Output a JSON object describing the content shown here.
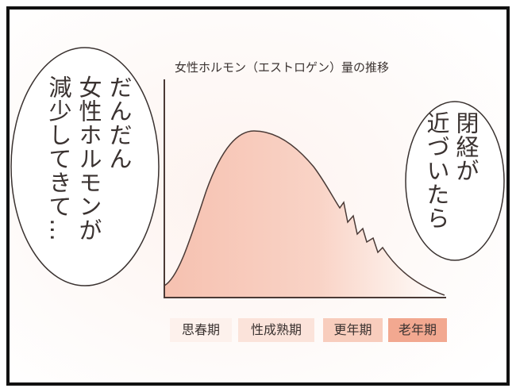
{
  "speech_left": {
    "lines": [
      "だんだん",
      "女性ホルモンが",
      "減少してきて…"
    ]
  },
  "speech_right": {
    "lines": [
      "閉経が",
      "近づいたら"
    ]
  },
  "chart": {
    "title": "女性ホルモン（エストロゲン）量の推移",
    "stages": [
      "思春期",
      "性成熟期",
      "更年期",
      "老年期"
    ]
  }
}
